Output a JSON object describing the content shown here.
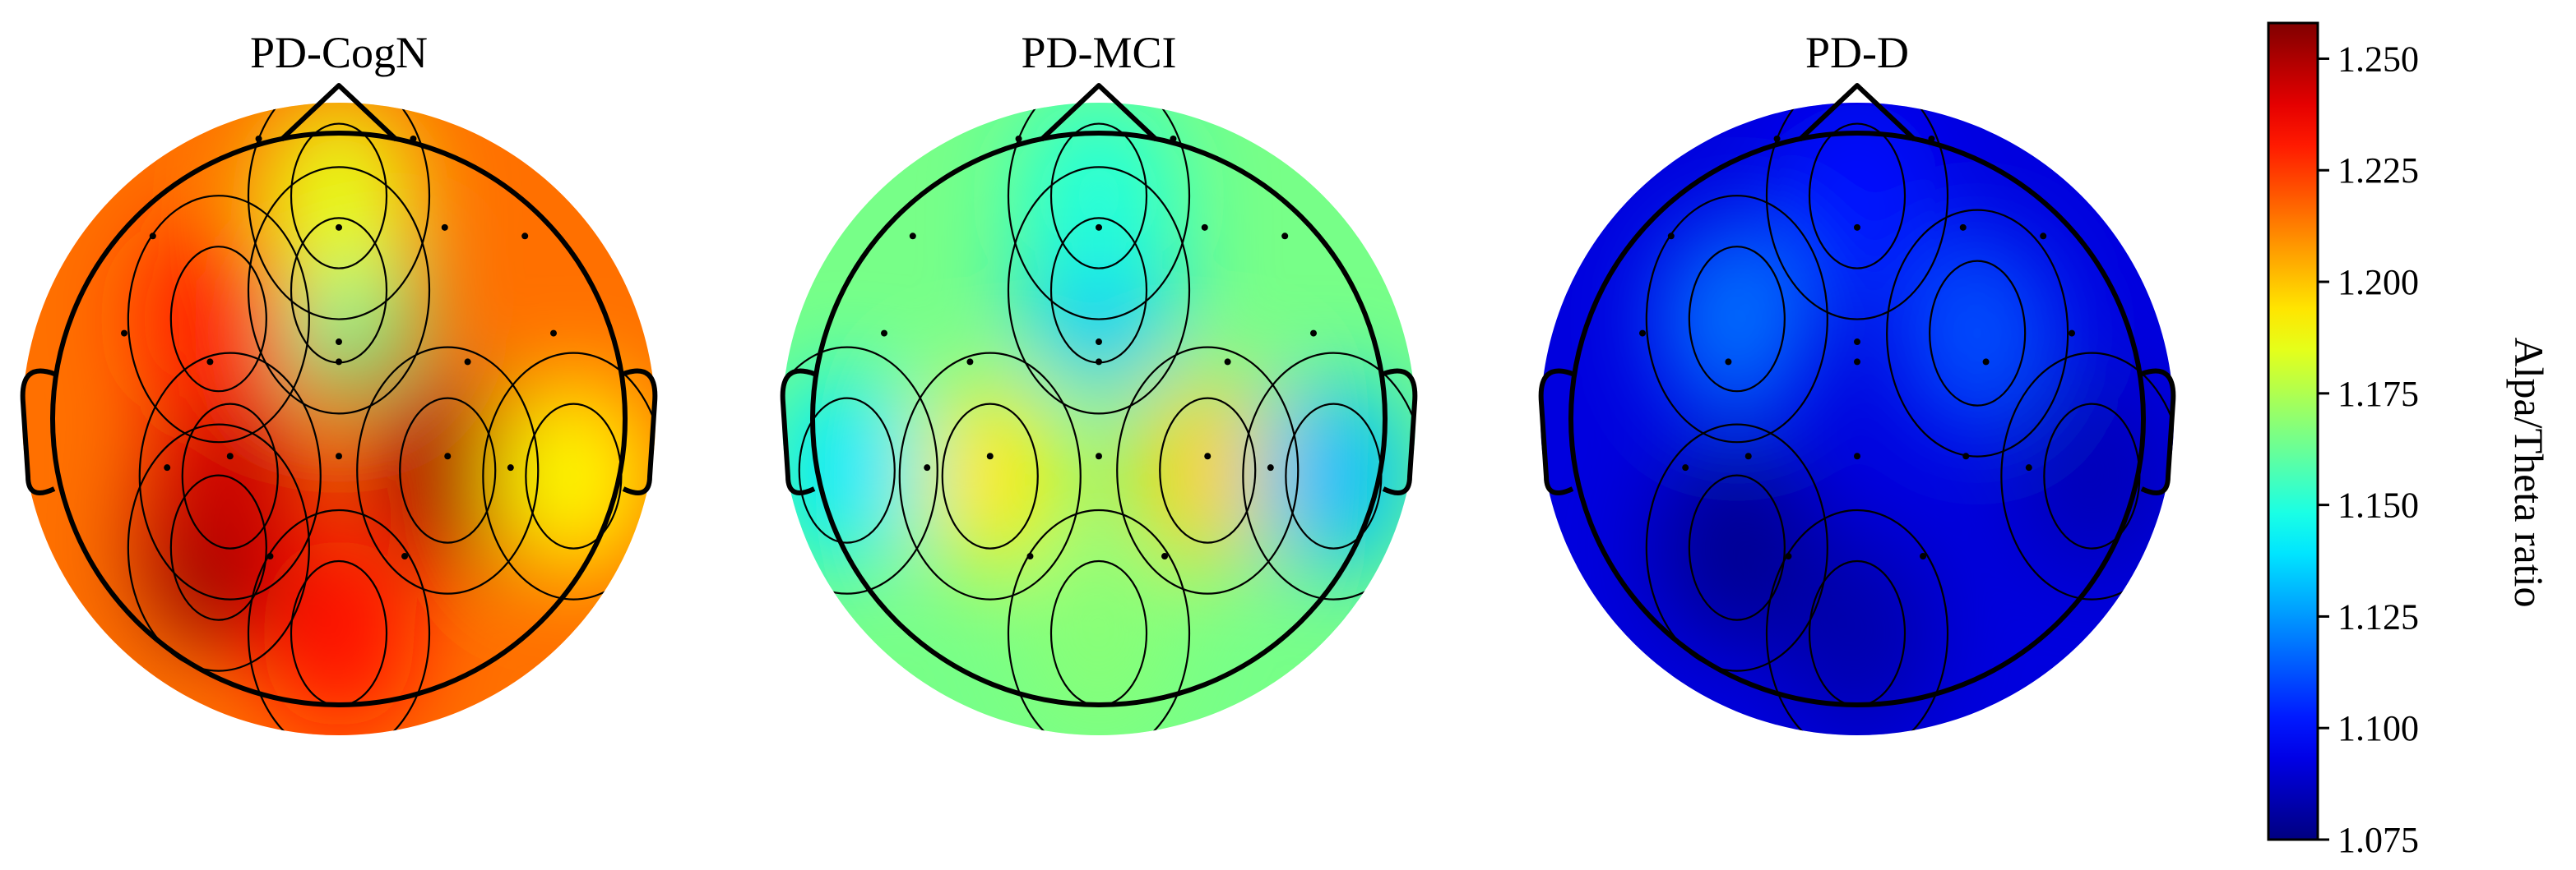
{
  "chart_data": {
    "type": "heatmap",
    "subtype": "eeg-topomap",
    "colormap": "jet",
    "vmin": 1.075,
    "vmax": 1.258,
    "colorbar": {
      "label": "Alpa/Theta ratio",
      "ticks": [
        1.075,
        1.1,
        1.125,
        1.15,
        1.175,
        1.2,
        1.225,
        1.25
      ],
      "tick_labels": [
        "1.075",
        "1.100",
        "1.125",
        "1.150",
        "1.175",
        "1.200",
        "1.225",
        "1.250"
      ]
    },
    "panels": [
      {
        "title": "PD-CogN",
        "baseline": 1.215,
        "features": [
          {
            "at": "posterior-left",
            "value": 1.258
          },
          {
            "at": "parietal-left",
            "value": 1.245
          },
          {
            "at": "parietal-right",
            "value": 1.25
          },
          {
            "at": "occipital",
            "value": 1.232
          },
          {
            "at": "frontal-midline",
            "value": 1.16
          },
          {
            "at": "prefrontal-midline",
            "value": 1.185
          },
          {
            "at": "temporal-right",
            "value": 1.19
          },
          {
            "at": "frontal-left",
            "value": 1.23
          }
        ]
      },
      {
        "title": "PD-MCI",
        "baseline": 1.165,
        "features": [
          {
            "at": "frontal-midline",
            "value": 1.133
          },
          {
            "at": "parietal-left",
            "value": 1.193
          },
          {
            "at": "parietal-right",
            "value": 1.197
          },
          {
            "at": "temporal-right",
            "value": 1.132
          },
          {
            "at": "temporal-left",
            "value": 1.14
          },
          {
            "at": "prefrontal-midline",
            "value": 1.15
          },
          {
            "at": "occipital",
            "value": 1.168
          }
        ]
      },
      {
        "title": "PD-D",
        "baseline": 1.092,
        "features": [
          {
            "at": "frontal-left",
            "value": 1.118
          },
          {
            "at": "frontal-right",
            "value": 1.112
          },
          {
            "at": "prefrontal-midline",
            "value": 1.1
          },
          {
            "at": "posterior-left",
            "value": 1.078
          },
          {
            "at": "occipital",
            "value": 1.083
          },
          {
            "at": "temporal-right",
            "value": 1.085
          }
        ]
      }
    ]
  }
}
